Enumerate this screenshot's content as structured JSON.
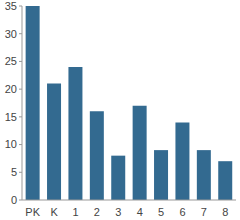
{
  "chart_data": {
    "type": "bar",
    "categories": [
      "PK",
      "K",
      "1",
      "2",
      "3",
      "4",
      "5",
      "6",
      "7",
      "8"
    ],
    "values": [
      35,
      21,
      24,
      16,
      8,
      17,
      9,
      14,
      9,
      7
    ],
    "color": "#336a90",
    "ylim": [
      0,
      35
    ],
    "yticks": [
      0,
      5,
      10,
      15,
      20,
      25,
      30,
      35
    ],
    "grid": false
  }
}
